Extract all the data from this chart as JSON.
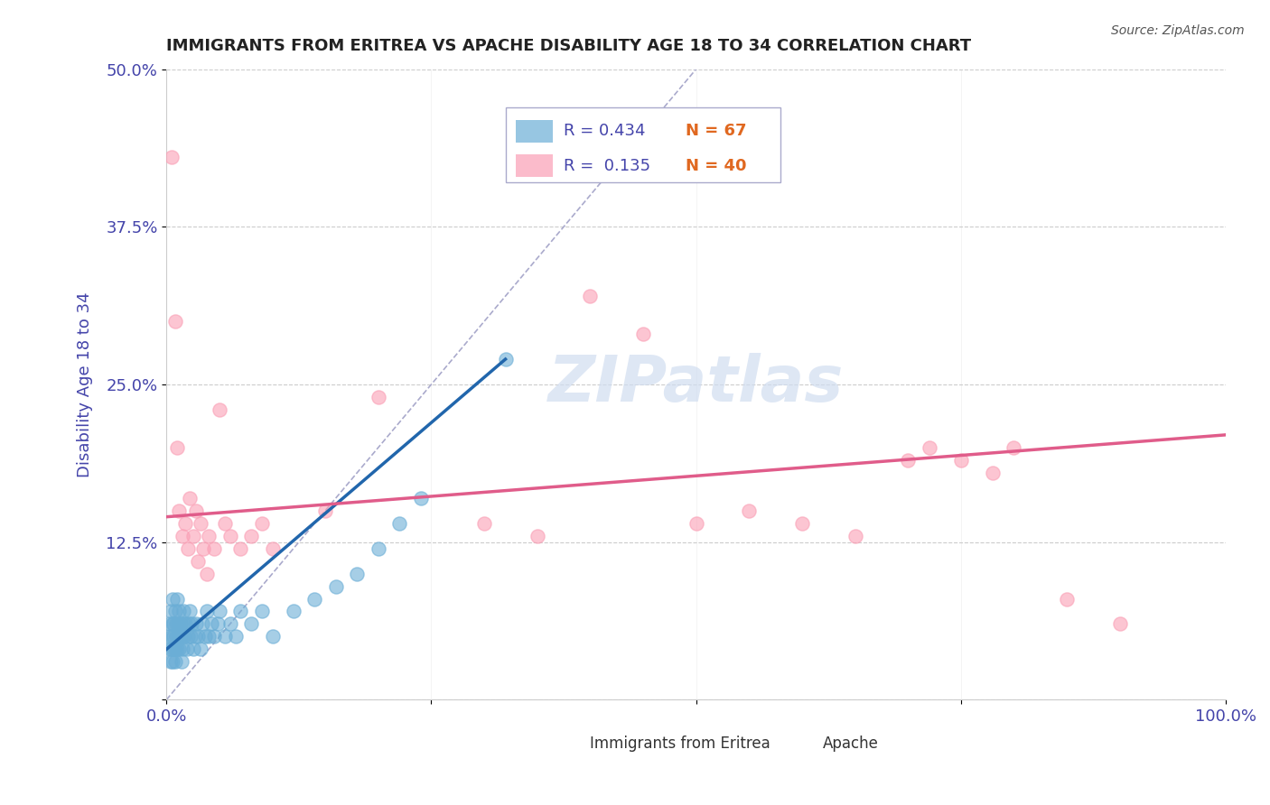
{
  "title": "IMMIGRANTS FROM ERITREA VS APACHE DISABILITY AGE 18 TO 34 CORRELATION CHART",
  "xlabel": "",
  "ylabel": "Disability Age 18 to 34",
  "source_text": "Source: ZipAtlas.com",
  "watermark": "ZIPatlas",
  "xlim": [
    0,
    1.0
  ],
  "ylim": [
    0,
    0.5
  ],
  "xticks": [
    0.0,
    0.25,
    0.5,
    0.75,
    1.0
  ],
  "xticklabels": [
    "0.0%",
    "",
    "",
    "",
    "100.0%"
  ],
  "yticks": [
    0.0,
    0.125,
    0.25,
    0.375,
    0.5
  ],
  "yticklabels": [
    "",
    "12.5%",
    "25.0%",
    "37.5%",
    "50.0%"
  ],
  "legend_r1": "R = 0.434",
  "legend_n1": "N = 67",
  "legend_r2": "R =  0.135",
  "legend_n2": "N = 40",
  "blue_color": "#6baed6",
  "pink_color": "#fa9fb5",
  "blue_line_color": "#2166ac",
  "pink_line_color": "#e05c8a",
  "title_color": "#222222",
  "axis_label_color": "#4444aa",
  "tick_color": "#4444aa",
  "blue_scatter_x": [
    0.002,
    0.003,
    0.003,
    0.004,
    0.004,
    0.005,
    0.005,
    0.006,
    0.006,
    0.006,
    0.007,
    0.007,
    0.007,
    0.008,
    0.008,
    0.008,
    0.009,
    0.009,
    0.01,
    0.01,
    0.011,
    0.011,
    0.012,
    0.012,
    0.013,
    0.013,
    0.014,
    0.015,
    0.015,
    0.016,
    0.016,
    0.017,
    0.018,
    0.019,
    0.02,
    0.021,
    0.022,
    0.023,
    0.024,
    0.025,
    0.027,
    0.028,
    0.03,
    0.032,
    0.034,
    0.036,
    0.038,
    0.04,
    0.042,
    0.045,
    0.048,
    0.05,
    0.055,
    0.06,
    0.065,
    0.07,
    0.08,
    0.09,
    0.1,
    0.12,
    0.14,
    0.16,
    0.18,
    0.2,
    0.22,
    0.24,
    0.32
  ],
  "blue_scatter_y": [
    0.05,
    0.04,
    0.06,
    0.03,
    0.07,
    0.04,
    0.05,
    0.03,
    0.06,
    0.08,
    0.04,
    0.05,
    0.06,
    0.03,
    0.04,
    0.07,
    0.05,
    0.06,
    0.04,
    0.08,
    0.05,
    0.06,
    0.04,
    0.07,
    0.05,
    0.06,
    0.03,
    0.04,
    0.05,
    0.06,
    0.07,
    0.05,
    0.06,
    0.04,
    0.05,
    0.06,
    0.07,
    0.05,
    0.06,
    0.04,
    0.05,
    0.06,
    0.05,
    0.04,
    0.06,
    0.05,
    0.07,
    0.05,
    0.06,
    0.05,
    0.06,
    0.07,
    0.05,
    0.06,
    0.05,
    0.07,
    0.06,
    0.07,
    0.05,
    0.07,
    0.08,
    0.09,
    0.1,
    0.12,
    0.14,
    0.16,
    0.27
  ],
  "pink_scatter_x": [
    0.005,
    0.008,
    0.01,
    0.012,
    0.015,
    0.018,
    0.02,
    0.022,
    0.025,
    0.028,
    0.03,
    0.032,
    0.035,
    0.038,
    0.04,
    0.045,
    0.05,
    0.055,
    0.06,
    0.07,
    0.08,
    0.09,
    0.1,
    0.15,
    0.2,
    0.3,
    0.35,
    0.4,
    0.45,
    0.5,
    0.55,
    0.6,
    0.65,
    0.7,
    0.72,
    0.75,
    0.78,
    0.8,
    0.85,
    0.9
  ],
  "pink_scatter_y": [
    0.43,
    0.3,
    0.2,
    0.15,
    0.13,
    0.14,
    0.12,
    0.16,
    0.13,
    0.15,
    0.11,
    0.14,
    0.12,
    0.1,
    0.13,
    0.12,
    0.23,
    0.14,
    0.13,
    0.12,
    0.13,
    0.14,
    0.12,
    0.15,
    0.24,
    0.14,
    0.13,
    0.32,
    0.29,
    0.14,
    0.15,
    0.14,
    0.13,
    0.19,
    0.2,
    0.19,
    0.18,
    0.2,
    0.08,
    0.06
  ],
  "blue_trend_x": [
    0.0,
    0.32
  ],
  "blue_trend_y": [
    0.04,
    0.27
  ],
  "pink_trend_x": [
    0.0,
    1.0
  ],
  "pink_trend_y": [
    0.145,
    0.21
  ],
  "diag_line_x": [
    0.0,
    0.5
  ],
  "diag_line_y": [
    0.0,
    0.5
  ],
  "background_color": "#ffffff",
  "grid_color": "#cccccc"
}
